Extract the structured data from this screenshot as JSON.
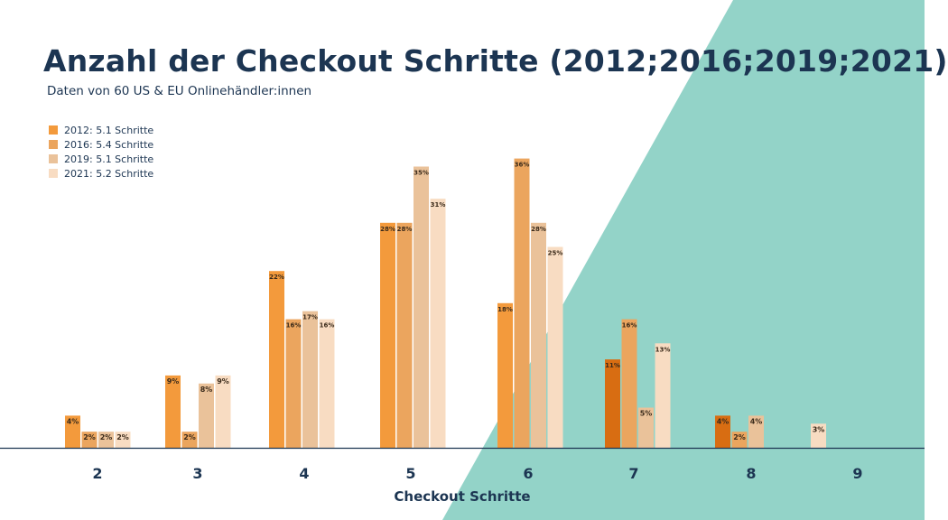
{
  "chart_data": {
    "type": "bar",
    "title": "Anzahl der Checkout Schritte (2012;2016;2019;2021)",
    "subtitle": "Daten von 60 US & EU Onlinehändler:innen",
    "xlabel": "Checkout Schritte",
    "ylabel": "",
    "categories": [
      "2",
      "3",
      "4",
      "5",
      "6",
      "7",
      "8",
      "9"
    ],
    "ylim": [
      0,
      40
    ],
    "value_suffix": "%",
    "legend_position": "top-left",
    "series": [
      {
        "name": "2012: 5.1 Schritte",
        "color": "#f39a3c",
        "values": [
          4,
          9,
          22,
          28,
          18,
          11,
          4,
          null
        ]
      },
      {
        "name": "2016: 5.4 Schritte",
        "color": "#eba55e",
        "values": [
          2,
          2,
          16,
          28,
          36,
          16,
          2,
          null
        ]
      },
      {
        "name": "2019: 5.1 Schritte",
        "color": "#eac29a",
        "values": [
          2,
          8,
          17,
          35,
          28,
          5,
          4,
          null
        ]
      },
      {
        "name": "2021: 5.2 Schritte",
        "color": "#f8dcc2",
        "values": [
          2,
          9,
          16,
          31,
          25,
          13,
          null,
          3
        ]
      }
    ],
    "accent_colors": {
      "title": "#1c3552",
      "background_shape": "#93d3c8",
      "axis": "#1c3552",
      "bar_on_teal": "#d86d12"
    }
  }
}
